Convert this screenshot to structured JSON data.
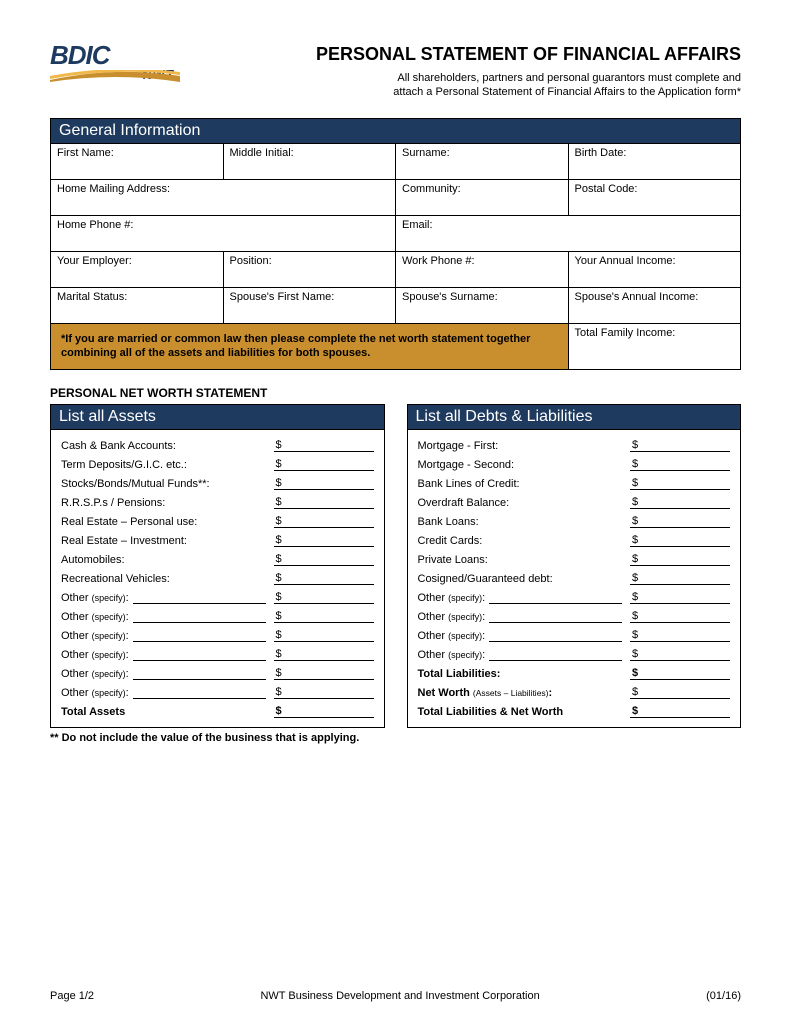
{
  "logo": {
    "main": "BDIC",
    "sub": "NWT",
    "swoosh_color": "#c98f2e",
    "accent_color": "#1e3a5f"
  },
  "header": {
    "title": "PERSONAL STATEMENT OF FINANCIAL AFFAIRS",
    "subtitle_line1": "All shareholders, partners and personal guarantors must complete and",
    "subtitle_line2": "attach a Personal Statement of Financial Affairs to the Application form*"
  },
  "colors": {
    "bar_bg": "#1e3a5f",
    "bar_text": "#ffffff",
    "note_bg": "#c98f2e",
    "border": "#000000",
    "page_bg": "#ffffff"
  },
  "general": {
    "heading": "General Information",
    "fields": {
      "first_name": "First Name:",
      "middle_initial": "Middle Initial:",
      "surname": "Surname:",
      "birth_date": "Birth Date:",
      "mailing": "Home Mailing Address:",
      "community": "Community:",
      "postal": "Postal Code:",
      "home_phone": "Home Phone #:",
      "email": "Email:",
      "employer": "Your Employer:",
      "position": "Position:",
      "work_phone": "Work Phone #:",
      "annual_income": "Your Annual Income:",
      "marital": "Marital Status:",
      "spouse_first": "Spouse's First Name:",
      "spouse_surname": "Spouse's Surname:",
      "spouse_income": "Spouse's Annual Income:",
      "family_income": "Total Family Income:"
    },
    "note": "*If you are married or common law then please complete the net worth statement together combining all of the assets and liabilities for both spouses."
  },
  "networth": {
    "heading": "PERSONAL NET WORTH STATEMENT",
    "assets_heading": "List all Assets",
    "debts_heading": "List all Debts & Liabilities",
    "currency": "$",
    "assets": [
      "Cash & Bank Accounts:",
      "Term Deposits/G.I.C. etc.:",
      "Stocks/Bonds/Mutual Funds**:",
      "R.R.S.P.s / Pensions:",
      "Real Estate – Personal use:",
      "Real Estate – Investment:",
      "Automobiles:",
      "Recreational Vehicles:"
    ],
    "assets_other_count": 6,
    "assets_total": "Total Assets",
    "debts": [
      "Mortgage - First:",
      "Mortgage - Second:",
      "Bank Lines of Credit:",
      "Overdraft Balance:",
      "Bank Loans:",
      "Credit Cards:",
      "Private Loans:",
      "Cosigned/Guaranteed debt:"
    ],
    "debts_other_count": 4,
    "total_liabilities": "Total Liabilities:",
    "net_worth_label": "Net Worth",
    "net_worth_sub": "(Assets – Liabilities)",
    "total_lnw": "Total Liabilities & Net Worth",
    "other_label": "Other",
    "specify": "(specify)",
    "footnote": "** Do not include the value of the business that is applying."
  },
  "footer": {
    "page": "Page 1/2",
    "org": "NWT Business Development and Investment Corporation",
    "date": "(01/16)"
  }
}
